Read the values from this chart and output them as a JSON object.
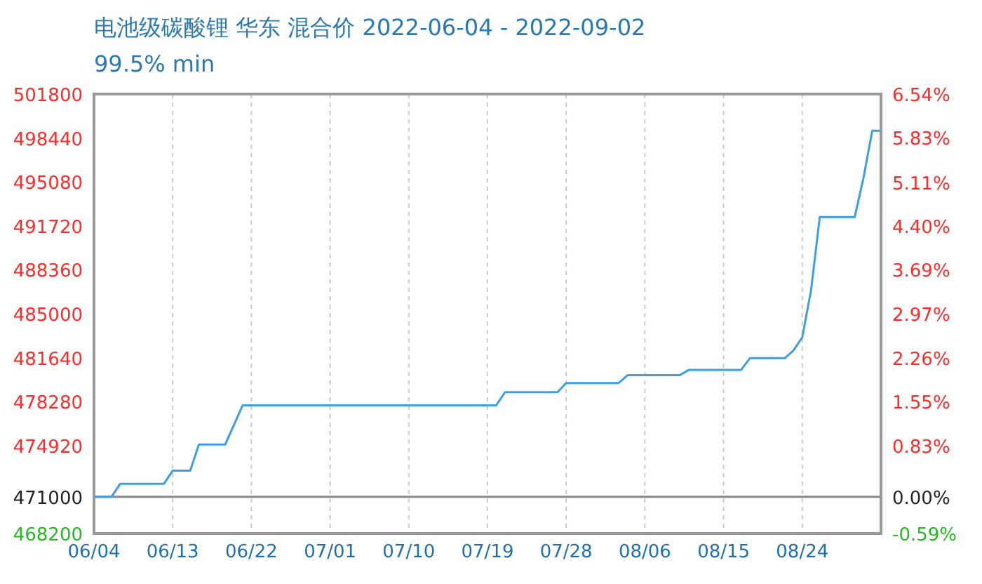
{
  "chart_data": {
    "type": "line",
    "title": "电池级碳酸锂 华东 混合价 2022-06-04 - 2022-09-02",
    "subtitle": "99.5% min",
    "x": [
      "2022-06-04",
      "2022-06-06",
      "2022-06-07",
      "2022-06-12",
      "2022-06-13",
      "2022-06-15",
      "2022-06-16",
      "2022-06-19",
      "2022-06-21",
      "2022-07-20",
      "2022-07-21",
      "2022-07-27",
      "2022-07-28",
      "2022-08-03",
      "2022-08-04",
      "2022-08-10",
      "2022-08-11",
      "2022-08-17",
      "2022-08-18",
      "2022-08-22",
      "2022-08-23",
      "2022-08-24",
      "2022-08-25",
      "2022-08-26",
      "2022-08-30",
      "2022-08-31",
      "2022-09-01",
      "2022-09-02"
    ],
    "series": [
      {
        "color": "#3d9ee0",
        "values": [
          471000,
          471000,
          472000,
          472000,
          473000,
          473000,
          475000,
          475000,
          478000,
          478000,
          479000,
          479000,
          479700,
          479700,
          480300,
          480300,
          480700,
          480700,
          481600,
          481600,
          482200,
          483200,
          486800,
          492400,
          492400,
          495400,
          499000,
          499000
        ]
      }
    ],
    "xlim": [
      "2022-06-04",
      "2022-09-02"
    ],
    "xticks": [
      {
        "value": "2022-06-04",
        "label": "06/04"
      },
      {
        "value": "2022-06-13",
        "label": "06/13"
      },
      {
        "value": "2022-06-22",
        "label": "06/22"
      },
      {
        "value": "2022-07-01",
        "label": "07/01"
      },
      {
        "value": "2022-07-10",
        "label": "07/10"
      },
      {
        "value": "2022-07-19",
        "label": "07/19"
      },
      {
        "value": "2022-07-28",
        "label": "07/28"
      },
      {
        "value": "2022-08-06",
        "label": "08/06"
      },
      {
        "value": "2022-08-15",
        "label": "08/15"
      },
      {
        "value": "2022-08-24",
        "label": "08/24"
      }
    ],
    "ylim": [
      468200,
      501800
    ],
    "yticks": [
      468200,
      471000,
      474920,
      478280,
      481640,
      485000,
      488360,
      491720,
      495080,
      498440,
      501800
    ],
    "y2lim": [
      -0.59,
      6.54
    ],
    "y2ticks": [
      {
        "value": -0.59,
        "label": "-0.59%"
      },
      {
        "value": 0,
        "label": "0.00%"
      },
      {
        "value": 0.83,
        "label": "0.83%"
      },
      {
        "value": 1.55,
        "label": "1.55%"
      },
      {
        "value": 2.26,
        "label": "2.26%"
      },
      {
        "value": 2.97,
        "label": "2.97%"
      },
      {
        "value": 3.69,
        "label": "3.69%"
      },
      {
        "value": 4.4,
        "label": "4.40%"
      },
      {
        "value": 5.11,
        "label": "5.11%"
      },
      {
        "value": 5.83,
        "label": "5.83%"
      },
      {
        "value": 6.54,
        "label": "6.54%"
      }
    ],
    "ref_lines": [
      {
        "axis": "y",
        "value": 471000,
        "color": "#888888",
        "line_style": "solid"
      }
    ],
    "grid": true,
    "marker": "none",
    "line_style": "solid"
  }
}
